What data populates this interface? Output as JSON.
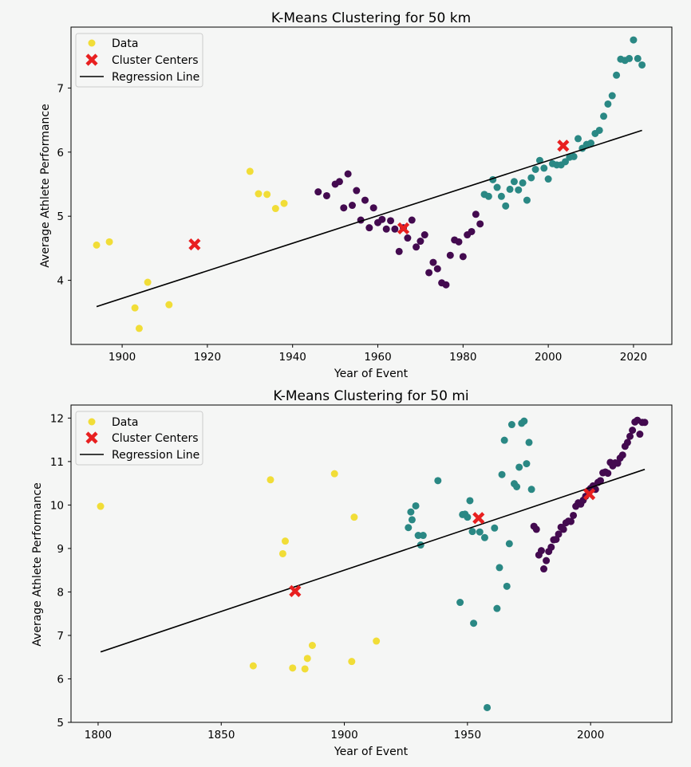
{
  "colors": {
    "background": "#f5f6f5",
    "yellow": "#f1dd37",
    "teal": "#2a8884",
    "purple": "#430a4f",
    "center": "#e82020",
    "line": "#000000"
  },
  "chart_data": [
    {
      "type": "scatter",
      "title": "K-Means Clustering for 50 km",
      "xlabel": "Year of Event",
      "ylabel": "Average Athlete Performance",
      "xlim": [
        1888,
        2029
      ],
      "ylim": [
        3.0,
        7.95
      ],
      "xticks": [
        1900,
        1920,
        1940,
        1960,
        1980,
        2000,
        2020
      ],
      "yticks": [
        4,
        5,
        6,
        7
      ],
      "legend": [
        {
          "name": "Data",
          "marker": "data-dot"
        },
        {
          "name": "Cluster Centers",
          "marker": "center-x"
        },
        {
          "name": "Regression Line",
          "marker": "line"
        }
      ],
      "clusters": [
        {
          "color": "yellow",
          "points": [
            [
              1894,
              4.55
            ],
            [
              1897,
              4.6
            ],
            [
              1903,
              3.57
            ],
            [
              1904,
              3.25
            ],
            [
              1906,
              3.97
            ],
            [
              1911,
              3.62
            ],
            [
              1930,
              5.7
            ],
            [
              1932,
              5.35
            ],
            [
              1934,
              5.34
            ],
            [
              1936,
              5.12
            ],
            [
              1938,
              5.2
            ]
          ]
        },
        {
          "color": "purple",
          "points": [
            [
              1946,
              5.38
            ],
            [
              1948,
              5.32
            ],
            [
              1950,
              5.5
            ],
            [
              1951,
              5.54
            ],
            [
              1952,
              5.13
            ],
            [
              1953,
              5.66
            ],
            [
              1954,
              5.17
            ],
            [
              1955,
              5.4
            ],
            [
              1956,
              4.94
            ],
            [
              1957,
              5.25
            ],
            [
              1958,
              4.82
            ],
            [
              1959,
              5.13
            ],
            [
              1960,
              4.9
            ],
            [
              1961,
              4.95
            ],
            [
              1962,
              4.8
            ],
            [
              1963,
              4.93
            ],
            [
              1964,
              4.8
            ],
            [
              1965,
              4.45
            ],
            [
              1966,
              4.82
            ],
            [
              1967,
              4.66
            ],
            [
              1968,
              4.94
            ],
            [
              1969,
              4.52
            ],
            [
              1970,
              4.61
            ],
            [
              1971,
              4.71
            ],
            [
              1972,
              4.12
            ],
            [
              1973,
              4.28
            ],
            [
              1974,
              4.18
            ],
            [
              1975,
              3.96
            ],
            [
              1976,
              3.93
            ],
            [
              1977,
              4.39
            ],
            [
              1978,
              4.63
            ],
            [
              1979,
              4.6
            ],
            [
              1980,
              4.37
            ],
            [
              1981,
              4.71
            ],
            [
              1982,
              4.76
            ],
            [
              1983,
              5.03
            ],
            [
              1984,
              4.88
            ]
          ]
        },
        {
          "color": "teal",
          "points": [
            [
              1985,
              5.34
            ],
            [
              1986,
              5.31
            ],
            [
              1987,
              5.57
            ],
            [
              1988,
              5.45
            ],
            [
              1989,
              5.31
            ],
            [
              1990,
              5.16
            ],
            [
              1991,
              5.42
            ],
            [
              1992,
              5.54
            ],
            [
              1993,
              5.41
            ],
            [
              1994,
              5.52
            ],
            [
              1995,
              5.25
            ],
            [
              1996,
              5.6
            ],
            [
              1997,
              5.73
            ],
            [
              1998,
              5.87
            ],
            [
              1999,
              5.75
            ],
            [
              2000,
              5.58
            ],
            [
              2001,
              5.82
            ],
            [
              2002,
              5.8
            ],
            [
              2003,
              5.8
            ],
            [
              2004,
              5.85
            ],
            [
              2005,
              5.92
            ],
            [
              2006,
              5.93
            ],
            [
              2007,
              6.21
            ],
            [
              2008,
              6.06
            ],
            [
              2009,
              6.12
            ],
            [
              2010,
              6.14
            ],
            [
              2011,
              6.29
            ],
            [
              2012,
              6.34
            ],
            [
              2013,
              6.56
            ],
            [
              2014,
              6.75
            ],
            [
              2015,
              6.88
            ],
            [
              2016,
              7.2
            ],
            [
              2017,
              7.45
            ],
            [
              2018,
              7.43
            ],
            [
              2019,
              7.46
            ],
            [
              2020,
              7.75
            ],
            [
              2021,
              7.46
            ],
            [
              2022,
              7.36
            ]
          ]
        }
      ],
      "centers": [
        [
          1917,
          4.56
        ],
        [
          1966,
          4.81
        ],
        [
          2003.5,
          6.1
        ]
      ],
      "regression": [
        [
          1894,
          3.59
        ],
        [
          2022,
          6.34
        ]
      ]
    },
    {
      "type": "scatter",
      "title": "K-Means Clustering for 50 mi",
      "xlabel": "Year of Event",
      "ylabel": "Average Athlete Performance",
      "xlim": [
        1789,
        2033
      ],
      "ylim": [
        5.0,
        12.3
      ],
      "xticks": [
        1800,
        1850,
        1900,
        1950,
        2000
      ],
      "yticks": [
        5,
        6,
        7,
        8,
        9,
        10,
        11,
        12
      ],
      "legend": [
        {
          "name": "Data",
          "marker": "data-dot"
        },
        {
          "name": "Cluster Centers",
          "marker": "center-x"
        },
        {
          "name": "Regression Line",
          "marker": "line"
        }
      ],
      "clusters": [
        {
          "color": "yellow",
          "points": [
            [
              1801,
              9.97
            ],
            [
              1863,
              6.3
            ],
            [
              1870,
              10.58
            ],
            [
              1875,
              8.88
            ],
            [
              1876,
              9.17
            ],
            [
              1879,
              6.25
            ],
            [
              1884,
              6.23
            ],
            [
              1885,
              6.47
            ],
            [
              1887,
              6.77
            ],
            [
              1896,
              10.72
            ],
            [
              1903,
              6.4
            ],
            [
              1904,
              9.72
            ],
            [
              1913,
              6.87
            ]
          ]
        },
        {
          "color": "teal",
          "points": [
            [
              1926,
              9.48
            ],
            [
              1927,
              9.84
            ],
            [
              1927.5,
              9.66
            ],
            [
              1929,
              9.98
            ],
            [
              1930,
              9.3
            ],
            [
              1931,
              9.08
            ],
            [
              1932,
              9.3
            ],
            [
              1938,
              10.56
            ],
            [
              1947,
              7.76
            ],
            [
              1948,
              9.78
            ],
            [
              1949,
              9.79
            ],
            [
              1950,
              9.72
            ],
            [
              1951,
              10.1
            ],
            [
              1952,
              9.39
            ],
            [
              1952.5,
              7.28
            ],
            [
              1955,
              9.38
            ],
            [
              1957,
              9.25
            ],
            [
              1958,
              5.34
            ],
            [
              1961,
              9.47
            ],
            [
              1962,
              7.62
            ],
            [
              1963,
              8.56
            ],
            [
              1964,
              10.7
            ],
            [
              1965,
              11.49
            ],
            [
              1966,
              8.13
            ],
            [
              1967,
              9.11
            ],
            [
              1968,
              11.85
            ],
            [
              1969,
              10.49
            ],
            [
              1970,
              10.42
            ],
            [
              1971,
              10.87
            ],
            [
              1972,
              11.88
            ],
            [
              1973,
              11.93
            ],
            [
              1974,
              10.95
            ],
            [
              1975,
              11.44
            ],
            [
              1976,
              10.36
            ]
          ]
        },
        {
          "color": "purple",
          "points": [
            [
              1977,
              9.51
            ],
            [
              1978,
              9.44
            ],
            [
              1979,
              8.85
            ],
            [
              1980,
              8.95
            ],
            [
              1981,
              8.53
            ],
            [
              1982,
              8.72
            ],
            [
              1983,
              8.93
            ],
            [
              1984,
              9.03
            ],
            [
              1985,
              9.2
            ],
            [
              1986,
              9.21
            ],
            [
              1987,
              9.33
            ],
            [
              1988,
              9.49
            ],
            [
              1989,
              9.44
            ],
            [
              1990,
              9.59
            ],
            [
              1991,
              9.63
            ],
            [
              1992,
              9.62
            ],
            [
              1993,
              9.76
            ],
            [
              1994,
              9.97
            ],
            [
              1995,
              10.05
            ],
            [
              1996,
              10.02
            ],
            [
              1997,
              10.11
            ],
            [
              1998,
              10.2
            ],
            [
              1999,
              10.33
            ],
            [
              2000,
              10.38
            ],
            [
              2001,
              10.44
            ],
            [
              2002,
              10.36
            ],
            [
              2003,
              10.52
            ],
            [
              2004,
              10.56
            ],
            [
              2005,
              10.74
            ],
            [
              2006,
              10.76
            ],
            [
              2007,
              10.73
            ],
            [
              2008,
              10.98
            ],
            [
              2009,
              10.9
            ],
            [
              2010,
              10.97
            ],
            [
              2011,
              10.96
            ],
            [
              2012,
              11.08
            ],
            [
              2013,
              11.15
            ],
            [
              2014,
              11.35
            ],
            [
              2015,
              11.44
            ],
            [
              2016,
              11.58
            ],
            [
              2017,
              11.72
            ],
            [
              2018,
              11.91
            ],
            [
              2019,
              11.95
            ],
            [
              2020,
              11.63
            ],
            [
              2021,
              11.9
            ],
            [
              2022,
              11.9
            ]
          ]
        }
      ],
      "centers": [
        [
          1880,
          8.02
        ],
        [
          1954.5,
          9.7
        ],
        [
          1999.5,
          10.25
        ]
      ],
      "regression": [
        [
          1801,
          6.62
        ],
        [
          2022,
          10.82
        ]
      ]
    }
  ]
}
